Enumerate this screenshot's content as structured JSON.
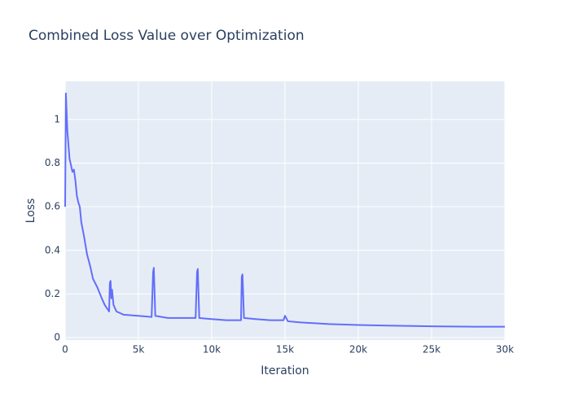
{
  "chart_data": {
    "type": "line",
    "title": "Combined Loss Value over Optimization",
    "x_label": "Iteration",
    "y_label": "Loss",
    "color": "#636efa",
    "grid": true,
    "x": [
      0,
      50,
      150,
      300,
      500,
      600,
      700,
      800,
      900,
      1000,
      1100,
      1300,
      1500,
      1700,
      1900,
      2200,
      2500,
      2700,
      2900,
      3000,
      3050,
      3100,
      3150,
      3200,
      3300,
      3500,
      4000,
      5000,
      5900,
      6000,
      6050,
      6150,
      7000,
      8000,
      8900,
      9000,
      9050,
      9150,
      10000,
      11000,
      12000,
      12050,
      12100,
      12200,
      13000,
      14000,
      14900,
      15000,
      15200,
      16000,
      18000,
      20000,
      22000,
      25000,
      28000,
      30000
    ],
    "values": [
      0.6,
      1.12,
      0.95,
      0.82,
      0.76,
      0.77,
      0.72,
      0.65,
      0.62,
      0.6,
      0.53,
      0.46,
      0.38,
      0.33,
      0.27,
      0.23,
      0.18,
      0.15,
      0.13,
      0.12,
      0.25,
      0.26,
      0.18,
      0.22,
      0.15,
      0.12,
      0.105,
      0.1,
      0.095,
      0.3,
      0.32,
      0.1,
      0.09,
      0.09,
      0.09,
      0.3,
      0.315,
      0.09,
      0.085,
      0.08,
      0.08,
      0.28,
      0.29,
      0.09,
      0.085,
      0.08,
      0.08,
      0.1,
      0.075,
      0.07,
      0.062,
      0.058,
      0.055,
      0.052,
      0.05,
      0.05
    ],
    "xlim": [
      0,
      30000
    ],
    "ylim": [
      -0.011,
      1.175
    ],
    "xticks": [
      0,
      {
        "value": 5000,
        "label": "5k"
      },
      {
        "value": 10000,
        "label": "10k"
      },
      {
        "value": 15000,
        "label": "15k"
      },
      {
        "value": 20000,
        "label": "20k"
      },
      {
        "value": 25000,
        "label": "25k"
      },
      {
        "value": 30000,
        "label": "30k"
      }
    ],
    "yticks": [
      0,
      0.2,
      0.4,
      0.6,
      0.8,
      1
    ]
  }
}
